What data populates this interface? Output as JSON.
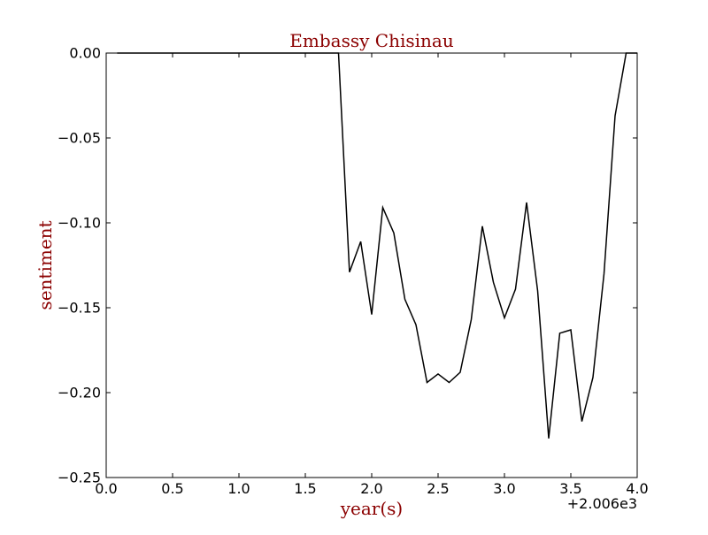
{
  "chart_data": {
    "type": "line",
    "title": "Embassy Chisinau",
    "xlabel": "year(s)",
    "ylabel": "sentiment",
    "x_offset_label": "+2.006e3",
    "xlim": [
      0.0,
      4.0
    ],
    "ylim": [
      -0.25,
      0.0
    ],
    "x_ticks": [
      "0.0",
      "0.5",
      "1.0",
      "1.5",
      "2.0",
      "2.5",
      "3.0",
      "3.5",
      "4.0"
    ],
    "y_ticks": [
      "0.00",
      "−0.05",
      "−0.10",
      "−0.15",
      "−0.20",
      "−0.25"
    ],
    "grid": false,
    "line_color": "#000000",
    "label_color": "#8b0000",
    "series": [
      {
        "x": [
          0.083,
          0.167,
          0.25,
          0.333,
          0.417,
          0.5,
          0.583,
          0.667,
          0.75,
          0.833,
          0.917,
          1.0,
          1.083,
          1.167,
          1.25,
          1.333,
          1.417,
          1.5,
          1.583,
          1.667,
          1.75,
          1.833,
          1.917,
          2.0,
          2.083,
          2.167,
          2.25,
          2.333,
          2.417,
          2.5,
          2.583,
          2.667,
          2.75,
          2.833,
          2.917,
          3.0,
          3.083,
          3.167,
          3.25,
          3.333,
          3.417,
          3.5,
          3.583,
          3.667,
          3.75,
          3.833,
          3.917,
          4.0
        ],
        "y": [
          0.0,
          0.0,
          0.0,
          0.0,
          0.0,
          0.0,
          0.0,
          0.0,
          0.0,
          0.0,
          0.0,
          0.0,
          0.0,
          0.0,
          0.0,
          0.0,
          0.0,
          0.0,
          0.0,
          0.0,
          0.0,
          -0.129,
          -0.111,
          -0.154,
          -0.091,
          -0.106,
          -0.145,
          -0.16,
          -0.194,
          -0.189,
          -0.194,
          -0.188,
          -0.157,
          -0.102,
          -0.135,
          -0.156,
          -0.139,
          -0.088,
          -0.14,
          -0.227,
          -0.165,
          -0.163,
          -0.217,
          -0.191,
          -0.13,
          -0.037,
          0.0,
          0.0
        ]
      }
    ]
  }
}
